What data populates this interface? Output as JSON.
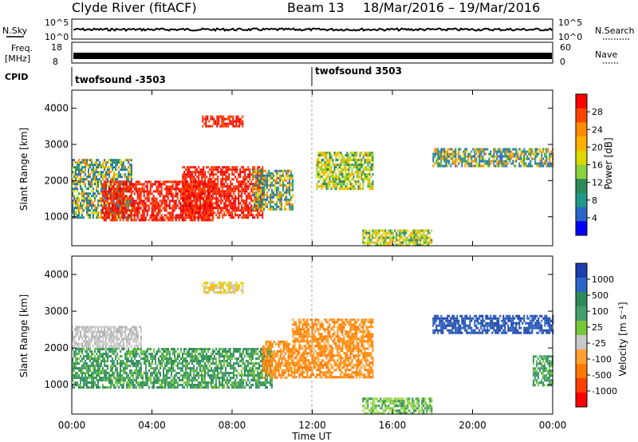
{
  "header": {
    "station": "Clyde River (fitACF)",
    "beam": "Beam 13",
    "date_range": "18/Mar/2016 – 19/Mar/2016"
  },
  "strips": {
    "nsky_label": "N.Sky",
    "nsky_ticks": [
      "10^5",
      "10^0"
    ],
    "nsearch_label": "N.Search",
    "nsearch_ticks": [
      "10^5",
      "10^0"
    ],
    "freq_label_line1": "Freq.",
    "freq_label_line2": "[MHz]",
    "freq_ticks": [
      "18",
      "8"
    ],
    "nave_label": "Nave",
    "nave_ticks": [
      "60",
      "0"
    ],
    "cpid_label": "CPID",
    "cpid_segments": [
      {
        "name": "twofsound -3503",
        "start_hour": 0
      },
      {
        "name": "twofsound 3503",
        "start_hour": 12
      }
    ]
  },
  "power_colorbar": {
    "label": "Power [dB]",
    "ticks": [
      "28",
      "24",
      "20",
      "16",
      "12",
      "8",
      "4"
    ],
    "colors": [
      "#ff0000",
      "#ff4400",
      "#ff8c00",
      "#ffb000",
      "#dcd800",
      "#8cd23c",
      "#2e8b57",
      "#1f9a8a",
      "#2a66c8",
      "#0000ff"
    ]
  },
  "velocity_colorbar": {
    "label": "Velocity [m s⁻¹]",
    "ticks": [
      "1000",
      "500",
      "100",
      "25",
      "-25",
      "-100",
      "-500",
      "-1000"
    ],
    "colors": [
      "#1a3fb0",
      "#2a66c8",
      "#2e8b57",
      "#46a06e",
      "#78c83c",
      "#c8c8c8",
      "#ffa030",
      "#ff7800",
      "#ff4000",
      "#ff0000"
    ]
  },
  "x_axis": {
    "label": "Time UT",
    "ticks": [
      "00:00",
      "04:00",
      "08:00",
      "12:00",
      "16:00",
      "20:00",
      "00:00"
    ]
  },
  "chart_data": [
    {
      "type": "heatmap",
      "title": "",
      "xlabel": "Time UT",
      "ylabel": "Slant Range [km]",
      "xlim_hours": [
        0,
        24
      ],
      "ylim": [
        200,
        4500
      ],
      "yticks": [
        "1000",
        "2000",
        "3000",
        "4000"
      ],
      "colorbar": "Power [dB]",
      "regions": [
        {
          "t0": 0.0,
          "t1": 3.0,
          "r0": 1000,
          "r1": 2600,
          "level": "mid"
        },
        {
          "t0": 1.5,
          "t1": 7.0,
          "r0": 900,
          "r1": 2000,
          "level": "high"
        },
        {
          "t0": 5.5,
          "t1": 9.5,
          "r0": 1000,
          "r1": 2400,
          "level": "high"
        },
        {
          "t0": 9.0,
          "t1": 11.0,
          "r0": 1200,
          "r1": 2300,
          "level": "mid"
        },
        {
          "t0": 6.5,
          "t1": 8.5,
          "r0": 3500,
          "r1": 3800,
          "level": "high"
        },
        {
          "t0": 14.5,
          "t1": 18.0,
          "r0": 250,
          "r1": 650,
          "level": "low"
        },
        {
          "t0": 18.0,
          "t1": 24.0,
          "r0": 2400,
          "r1": 2900,
          "level": "mid"
        },
        {
          "t0": 12.2,
          "t1": 15.0,
          "r0": 1800,
          "r1": 2800,
          "level": "low"
        }
      ]
    },
    {
      "type": "heatmap",
      "title": "",
      "xlabel": "Time UT",
      "ylabel": "Slant Range [km]",
      "xlim_hours": [
        0,
        24
      ],
      "ylim": [
        200,
        4500
      ],
      "yticks": [
        "1000",
        "2000",
        "3000",
        "4000"
      ],
      "colorbar": "Velocity [m s⁻¹]",
      "regions": [
        {
          "t0": 0.0,
          "t1": 3.5,
          "r0": 2000,
          "r1": 2600,
          "level": "gray"
        },
        {
          "t0": 0.0,
          "t1": 10.0,
          "r0": 900,
          "r1": 2000,
          "level": "green"
        },
        {
          "t0": 9.5,
          "t1": 11.0,
          "r0": 1200,
          "r1": 2200,
          "level": "orange"
        },
        {
          "t0": 11.0,
          "t1": 15.0,
          "r0": 1200,
          "r1": 2800,
          "level": "orange"
        },
        {
          "t0": 6.5,
          "t1": 8.5,
          "r0": 3500,
          "r1": 3800,
          "level": "yellow"
        },
        {
          "t0": 14.5,
          "t1": 18.0,
          "r0": 250,
          "r1": 650,
          "level": "lightgreen"
        },
        {
          "t0": 18.0,
          "t1": 24.0,
          "r0": 2400,
          "r1": 2900,
          "level": "blue"
        },
        {
          "t0": 23.0,
          "t1": 24.0,
          "r0": 1000,
          "r1": 1800,
          "level": "green"
        }
      ]
    }
  ]
}
